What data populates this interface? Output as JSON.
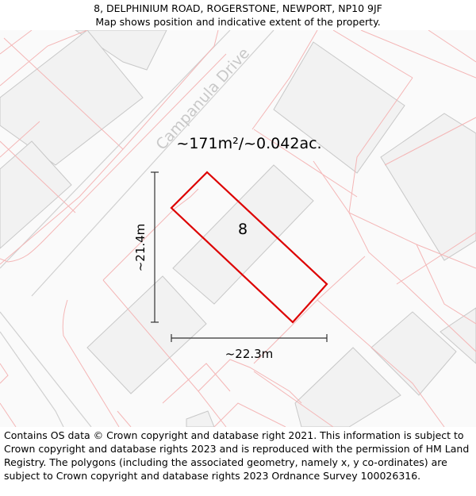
{
  "header": {
    "address": "8, DELPHINIUM ROAD, ROGERSTONE, NEWPORT, NP10 9JF",
    "subtitle": "Map shows position and indicative extent of the property."
  },
  "map": {
    "road_label": "Campanula Drive",
    "area_label": "~171m²/~0.042ac.",
    "plot_number": "8",
    "height_label": "~21.4m",
    "width_label": "~22.3m",
    "colors": {
      "boundary": "#f4b6b6",
      "building_fill": "#f2f2f2",
      "building_stroke": "#c8c8c8",
      "road_edge": "#cfcfcf",
      "road_text": "#c8c8c8",
      "plot_outline": "#dd0000",
      "measure_line": "#333333"
    }
  },
  "footer": {
    "copyright": "Contains OS data © Crown copyright and database right 2021. This information is subject to Crown copyright and database rights 2023 and is reproduced with the permission of HM Land Registry. The polygons (including the associated geometry, namely x, y co-ordinates) are subject to Crown copyright and database rights 2023 Ordnance Survey 100026316."
  }
}
